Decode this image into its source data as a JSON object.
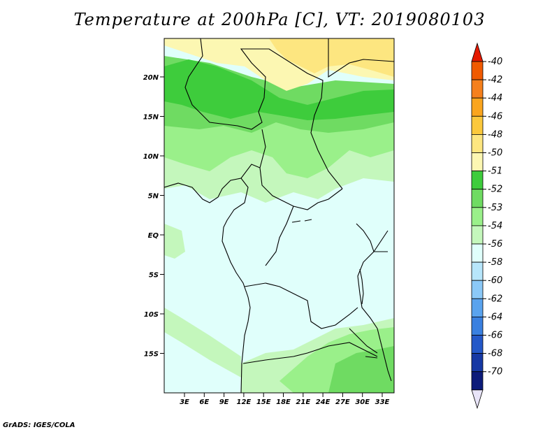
{
  "title": "Temperature at 200hPa [C], VT: 2019080103",
  "credit": "GrADS: IGES/COLA",
  "lat_labels": [
    "20N",
    "15N",
    "10N",
    "5N",
    "EQ",
    "5S",
    "10S",
    "15S"
  ],
  "lon_labels": [
    "3E",
    "6E",
    "9E",
    "12E",
    "15E",
    "18E",
    "21E",
    "24E",
    "27E",
    "30E",
    "33E"
  ],
  "colorbar": {
    "labels": [
      "-40",
      "-42",
      "-44",
      "-46",
      "-48",
      "-50",
      "-51",
      "-52",
      "-53",
      "-54",
      "-56",
      "-58",
      "-60",
      "-62",
      "-64",
      "-66",
      "-68",
      "-70"
    ],
    "colors": [
      "#e41a00",
      "#f05a00",
      "#f5801c",
      "#faa51e",
      "#fbc83c",
      "#fde680",
      "#fcf7b2",
      "#3ecc3c",
      "#6fdb62",
      "#9af08a",
      "#c4f7bc",
      "#e0fffb",
      "#b7e6fb",
      "#8bc8f7",
      "#5aa3ee",
      "#3a80e0",
      "#2458c8",
      "#1638a4",
      "#0c1b7a",
      "#e8e4f8"
    ]
  },
  "legend_colors": {
    "c50": "#fde680",
    "c51": "#fcf7b2",
    "c52": "#3ecc3c",
    "c53": "#6fdb62",
    "c54": "#9af08a",
    "c55": "#c4f7bc",
    "c56": "#e0fffb"
  }
}
